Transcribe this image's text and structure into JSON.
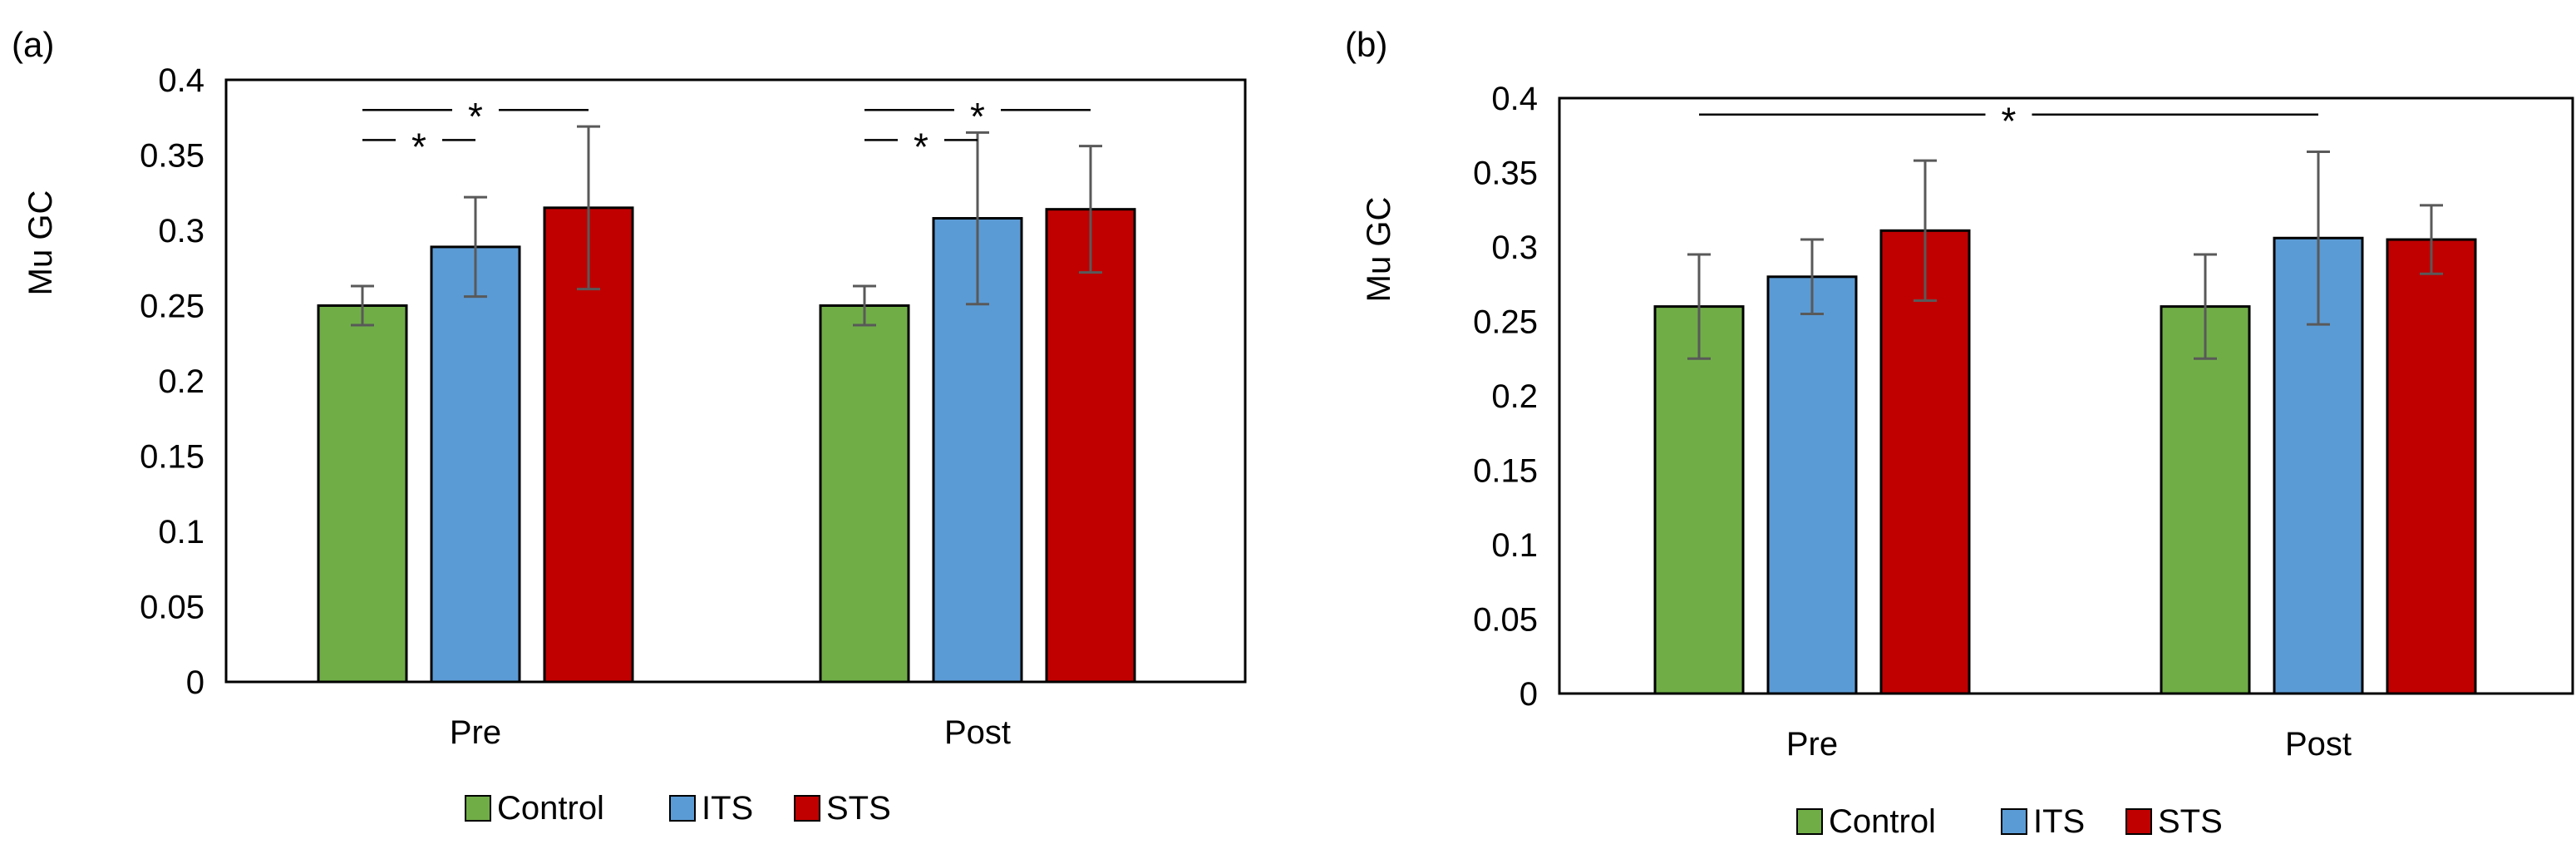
{
  "colors": {
    "Control": "#70ad47",
    "ITS": "#5b9bd5",
    "STS": "#c00000",
    "error_bar": "#595959",
    "axis": "#000000"
  },
  "chart_data": [
    {
      "panel_label": "(a)",
      "type": "bar",
      "categories": [
        "Pre",
        "Post"
      ],
      "series": [
        {
          "name": "Control",
          "values": [
            0.25,
            0.25
          ],
          "error": [
            0.013,
            0.013
          ]
        },
        {
          "name": "ITS",
          "values": [
            0.289,
            0.308
          ],
          "error": [
            0.033,
            0.057
          ]
        },
        {
          "name": "STS",
          "values": [
            0.315,
            0.314
          ],
          "error": [
            0.054,
            0.042
          ]
        }
      ],
      "ylabel": "Mu GC",
      "xlabel": "",
      "ylim": [
        0,
        0.4
      ],
      "yticks": [
        "0",
        "0.05",
        "0.1",
        "0.15",
        "0.2",
        "0.25",
        "0.3",
        "0.35",
        "0.4"
      ],
      "grid": false,
      "legend": [
        "Control",
        "ITS",
        "STS"
      ],
      "legend_position": "bottom-center",
      "significance": [
        {
          "group": 0,
          "from": 0,
          "to": 2,
          "label": "*",
          "level": 0.38
        },
        {
          "group": 0,
          "from": 0,
          "to": 1,
          "label": "*",
          "level": 0.36
        },
        {
          "group": 1,
          "from": 0,
          "to": 2,
          "label": "*",
          "level": 0.38
        },
        {
          "group": 1,
          "from": 0,
          "to": 1,
          "label": "*",
          "level": 0.36
        }
      ]
    },
    {
      "panel_label": "(b)",
      "type": "bar",
      "categories": [
        "Pre",
        "Post"
      ],
      "series": [
        {
          "name": "Control",
          "values": [
            0.26,
            0.26
          ],
          "error": [
            0.035,
            0.035
          ]
        },
        {
          "name": "ITS",
          "values": [
            0.28,
            0.306
          ],
          "error": [
            0.025,
            0.058
          ]
        },
        {
          "name": "STS",
          "values": [
            0.311,
            0.305
          ],
          "error": [
            0.047,
            0.023
          ]
        }
      ],
      "ylabel": "Mu GC",
      "xlabel": "",
      "ylim": [
        0,
        0.4
      ],
      "yticks": [
        "0",
        "0.05",
        "0.1",
        "0.15",
        "0.2",
        "0.25",
        "0.3",
        "0.35",
        "0.4"
      ],
      "grid": false,
      "legend": [
        "Control",
        "ITS",
        "STS"
      ],
      "legend_position": "bottom-center",
      "significance": [
        {
          "group": 0,
          "from": 0,
          "to": 1,
          "to_group": 1,
          "label": "*",
          "level": 0.389
        }
      ]
    }
  ]
}
